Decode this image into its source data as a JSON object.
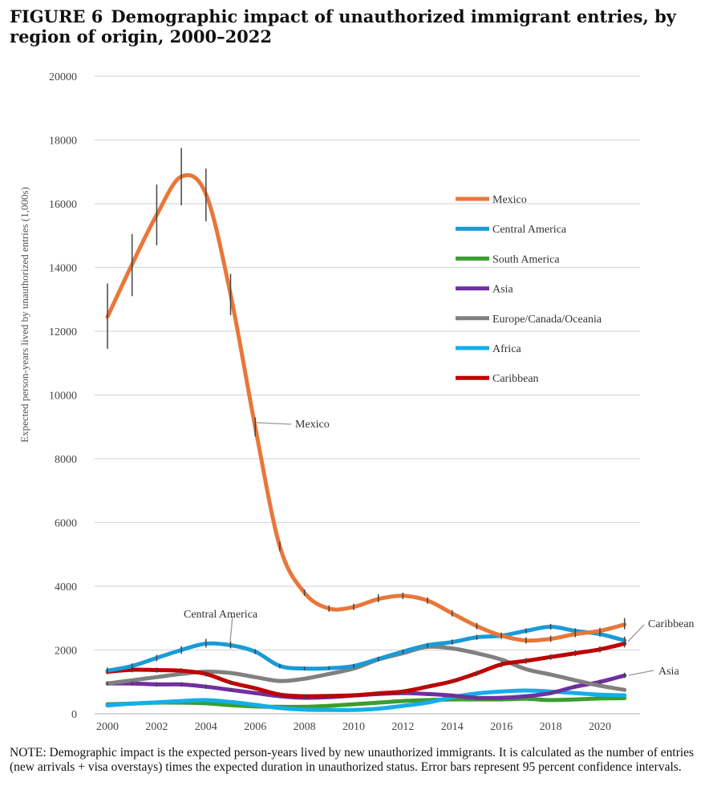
{
  "figure": {
    "number": "FIGURE 6",
    "title": "Demographic impact of unauthorized immigrant entries, by region of origin, 2000–2022"
  },
  "note": "NOTE: Demographic impact is the expected person-years lived by new unauthorized immigrants. It is calculated as the number of entries (new arrivals + visa overstays) times the expected duration in unauthorized status. Error bars represent 95 percent confidence intervals.",
  "chart_data": {
    "type": "line",
    "title": "Demographic impact of unauthorized immigrant entries, by region of origin, 2000–2022",
    "xlabel": "",
    "ylabel": "Expected person-years lived by unauthorized entries (1,000s)",
    "xlim": [
      2000,
      2021
    ],
    "ylim": [
      0,
      20000
    ],
    "x_ticks": [
      2000,
      2002,
      2004,
      2006,
      2008,
      2010,
      2012,
      2014,
      2016,
      2018,
      2020
    ],
    "y_ticks": [
      0,
      2000,
      4000,
      6000,
      8000,
      10000,
      12000,
      14000,
      16000,
      18000,
      20000
    ],
    "grid": "horizontal",
    "legend_position": "right",
    "x": [
      2000,
      2001,
      2002,
      2003,
      2004,
      2005,
      2006,
      2007,
      2008,
      2009,
      2010,
      2011,
      2012,
      2013,
      2014,
      2015,
      2016,
      2017,
      2018,
      2019,
      2020,
      2021
    ],
    "series": [
      {
        "name": "Mexico",
        "color": "#E8773A",
        "values": [
          12450,
          14100,
          15650,
          16850,
          16300,
          13150,
          9000,
          5250,
          3800,
          3300,
          3350,
          3600,
          3700,
          3550,
          3150,
          2750,
          2450,
          2300,
          2350,
          2500,
          2600,
          2800
        ],
        "ci": [
          [
            11450,
            13500
          ],
          [
            13100,
            15050
          ],
          [
            14700,
            16600
          ],
          [
            15950,
            17750
          ],
          [
            15450,
            17100
          ],
          [
            12500,
            13800
          ],
          [
            8700,
            9300
          ],
          [
            5100,
            5400
          ],
          [
            3700,
            3900
          ],
          [
            3200,
            3400
          ],
          [
            3250,
            3450
          ],
          [
            3500,
            3750
          ],
          [
            3600,
            3800
          ],
          [
            3450,
            3650
          ],
          [
            3050,
            3250
          ],
          [
            2650,
            2850
          ],
          [
            2350,
            2550
          ],
          [
            2200,
            2400
          ],
          [
            2250,
            2450
          ],
          [
            2400,
            2600
          ],
          [
            2500,
            2700
          ],
          [
            2650,
            3000
          ]
        ]
      },
      {
        "name": "Central America",
        "color": "#1A9BD7",
        "values": [
          1350,
          1500,
          1750,
          2000,
          2200,
          2150,
          1950,
          1500,
          1420,
          1430,
          1500,
          1720,
          1950,
          2150,
          2250,
          2400,
          2450,
          2600,
          2730,
          2600,
          2500,
          2300
        ],
        "ci": [
          [
            1250,
            1450
          ],
          [
            1420,
            1580
          ],
          [
            1650,
            1850
          ],
          [
            1880,
            2120
          ],
          [
            2080,
            2350
          ],
          [
            2050,
            2280
          ],
          [
            1870,
            2030
          ],
          [
            1430,
            1570
          ],
          [
            1360,
            1480
          ],
          [
            1370,
            1490
          ],
          [
            1440,
            1560
          ],
          [
            1650,
            1790
          ],
          [
            1880,
            2020
          ],
          [
            2080,
            2220
          ],
          [
            2170,
            2330
          ],
          [
            2320,
            2480
          ],
          [
            2370,
            2530
          ],
          [
            2520,
            2680
          ],
          [
            2640,
            2820
          ],
          [
            2520,
            2680
          ],
          [
            2420,
            2580
          ],
          [
            2200,
            2420
          ]
        ]
      },
      {
        "name": "South America",
        "color": "#3A9E2F",
        "values": [
          300,
          320,
          350,
          350,
          330,
          270,
          230,
          220,
          220,
          250,
          300,
          350,
          400,
          430,
          450,
          450,
          450,
          470,
          430,
          450,
          480,
          490
        ]
      },
      {
        "name": "Asia",
        "color": "#7030A0",
        "values": [
          950,
          950,
          920,
          920,
          850,
          750,
          650,
          550,
          500,
          520,
          570,
          620,
          650,
          620,
          570,
          500,
          500,
          550,
          650,
          850,
          1000,
          1200
        ],
        "ci": [
          [
            880,
            1020
          ],
          [
            880,
            1020
          ],
          [
            850,
            990
          ],
          [
            850,
            990
          ],
          [
            780,
            920
          ],
          [
            690,
            810
          ],
          [
            600,
            700
          ],
          [
            510,
            590
          ],
          [
            460,
            540
          ],
          [
            480,
            560
          ],
          [
            530,
            610
          ],
          [
            580,
            660
          ],
          [
            610,
            690
          ],
          [
            580,
            660
          ],
          [
            530,
            610
          ],
          [
            460,
            540
          ],
          [
            460,
            540
          ],
          [
            510,
            590
          ],
          [
            600,
            700
          ],
          [
            790,
            910
          ],
          [
            930,
            1070
          ],
          [
            1120,
            1290
          ]
        ]
      },
      {
        "name": "Europe/Canada/Oceania",
        "color": "#808080",
        "values": [
          950,
          1050,
          1150,
          1250,
          1320,
          1280,
          1150,
          1030,
          1100,
          1250,
          1420,
          1700,
          1900,
          2100,
          2050,
          1900,
          1700,
          1400,
          1230,
          1050,
          880,
          750
        ]
      },
      {
        "name": "Africa",
        "color": "#14AEEA",
        "values": [
          260,
          320,
          360,
          400,
          430,
          370,
          280,
          180,
          130,
          120,
          120,
          160,
          250,
          350,
          520,
          640,
          700,
          730,
          700,
          650,
          600,
          580
        ]
      },
      {
        "name": "Caribbean",
        "color": "#C00000",
        "values": [
          1320,
          1380,
          1370,
          1350,
          1250,
          980,
          800,
          600,
          550,
          560,
          580,
          640,
          700,
          850,
          1020,
          1270,
          1550,
          1660,
          1780,
          1900,
          2020,
          2200
        ],
        "ci": [
          [
            1240,
            1400
          ],
          [
            1300,
            1460
          ],
          [
            1290,
            1450
          ],
          [
            1270,
            1430
          ],
          [
            1170,
            1330
          ],
          [
            910,
            1050
          ],
          [
            740,
            860
          ],
          [
            550,
            650
          ],
          [
            500,
            600
          ],
          [
            510,
            610
          ],
          [
            530,
            630
          ],
          [
            590,
            690
          ],
          [
            650,
            750
          ],
          [
            790,
            910
          ],
          [
            950,
            1090
          ],
          [
            1190,
            1350
          ],
          [
            1460,
            1640
          ],
          [
            1570,
            1750
          ],
          [
            1690,
            1870
          ],
          [
            1810,
            1990
          ],
          [
            1920,
            2120
          ],
          [
            2080,
            2320
          ]
        ]
      }
    ],
    "annotations": [
      {
        "text": "Mexico",
        "series": "Mexico"
      },
      {
        "text": "Central America",
        "series": "Central America"
      },
      {
        "text": "Caribbean",
        "series": "Caribbean"
      },
      {
        "text": "Asia",
        "series": "Asia"
      }
    ]
  }
}
